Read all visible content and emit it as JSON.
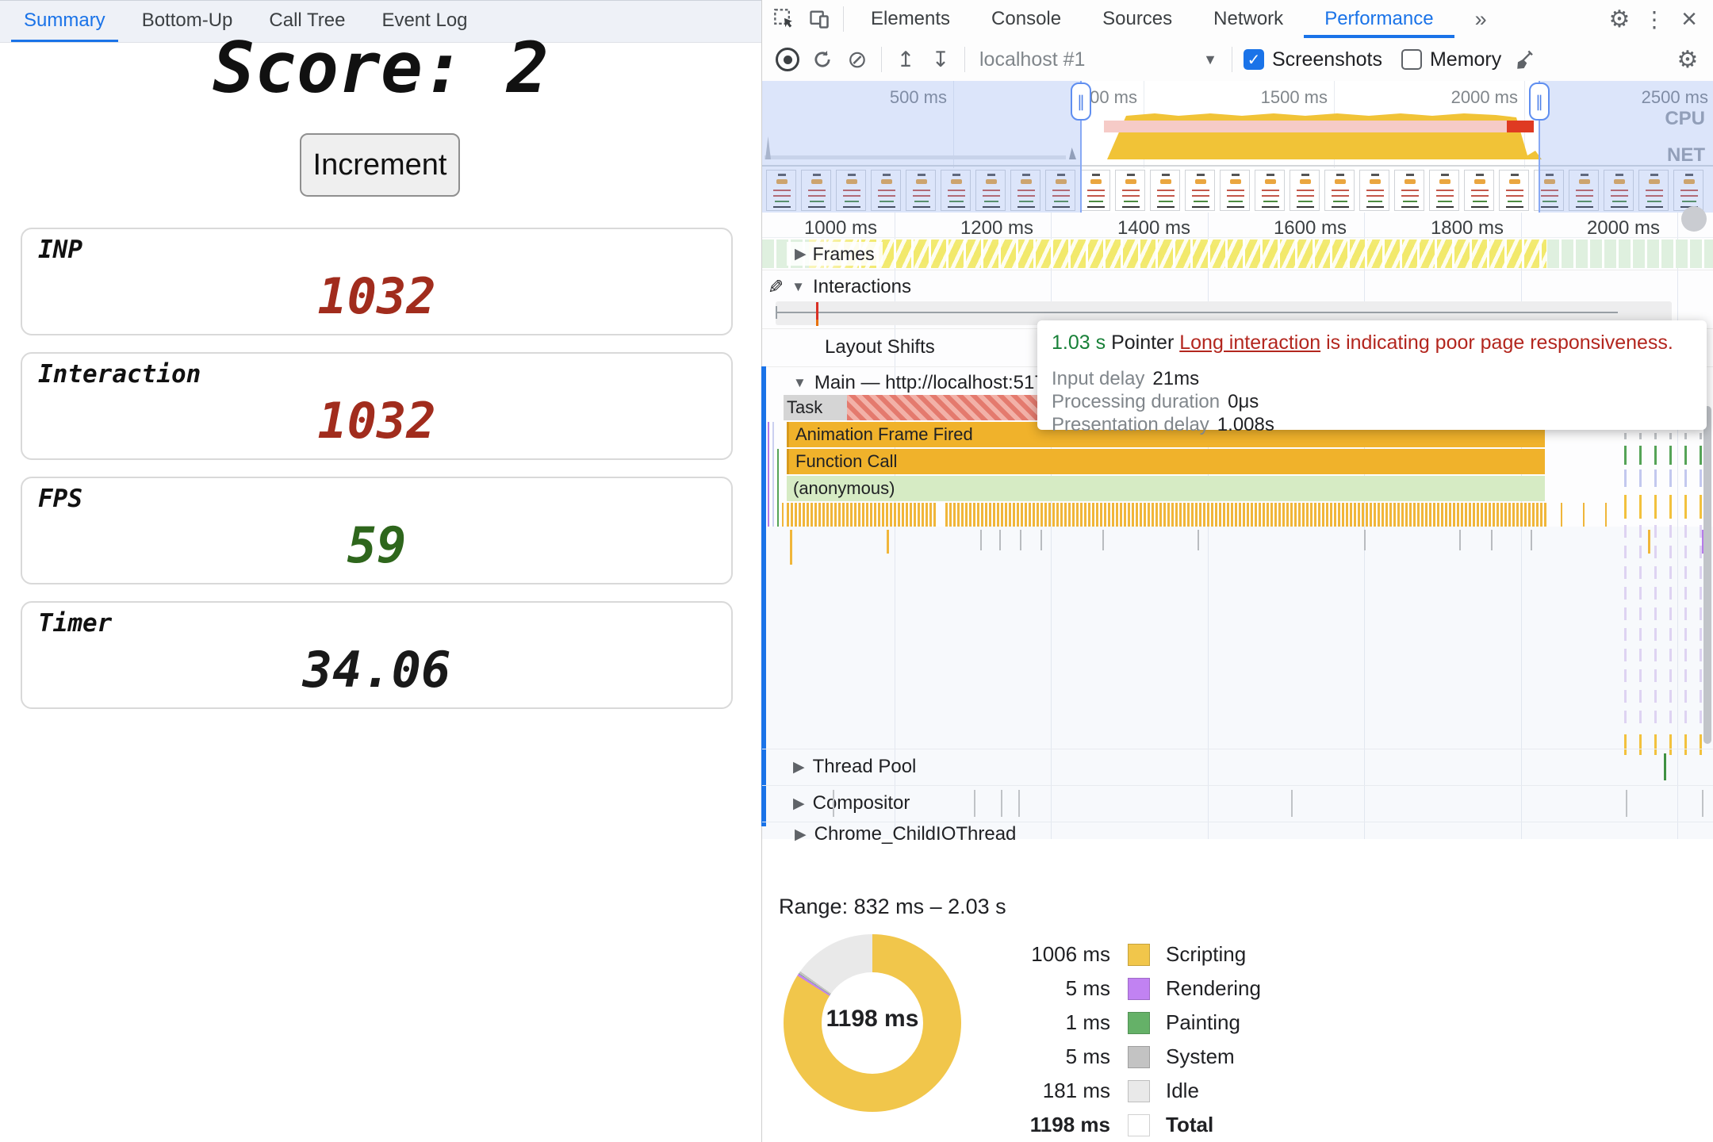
{
  "page": {
    "score_label": "Score: 2",
    "increment_button": "Increment",
    "metrics": [
      {
        "label": "INP",
        "value": "1032",
        "color": "#a12c1d"
      },
      {
        "label": "Interaction",
        "value": "1032",
        "color": "#a12c1d"
      },
      {
        "label": "FPS",
        "value": "59",
        "color": "#2e661c"
      },
      {
        "label": "Timer",
        "value": "34.06",
        "color": "#191919"
      }
    ]
  },
  "devtools": {
    "tabs": [
      "Elements",
      "Console",
      "Sources",
      "Network",
      "Performance"
    ],
    "active_tab": "Performance",
    "more_tabs_glyph": "»",
    "icons": [
      "inspect-icon",
      "device-toolbar-icon",
      "record-icon",
      "reload-icon",
      "clear-icon",
      "load-profile-icon",
      "save-profile-icon",
      "collect-garbage-icon",
      "settings-icon",
      "menu-icon",
      "close-icon",
      "edit-interactions-icon"
    ],
    "toolbar": {
      "profile_select": "localhost #1",
      "screenshots_label": "Screenshots",
      "screenshots_checked": true,
      "memory_label": "Memory",
      "memory_checked": false
    },
    "overview": {
      "ruler_labels": [
        "500 ms",
        "1000 ms",
        "1500 ms",
        "2000 ms",
        "2500 ms"
      ],
      "cpu_label": "CPU",
      "net_label": "NET"
    },
    "flame": {
      "ruler_labels": [
        "1000 ms",
        "1200 ms",
        "1400 ms",
        "1600 ms",
        "1800 ms",
        "2000 ms"
      ],
      "tracks": {
        "frames": "Frames",
        "interactions": "Interactions",
        "layout_shifts": "Layout Shifts",
        "main": "Main — http://localhost:517",
        "thread_pool": "Thread Pool",
        "compositor": "Compositor",
        "chrome_child_io": "Chrome_ChildIOThread"
      },
      "bars": {
        "task": "Task",
        "animation_frame": "Animation Frame Fired",
        "function_call": "Function Call",
        "anonymous": "(anonymous)"
      }
    },
    "tooltip": {
      "duration": "1.03 s",
      "type": "Pointer",
      "link": "Long interaction",
      "message": "is indicating poor page responsiveness.",
      "rows": [
        {
          "label": "Input delay",
          "value": "21ms"
        },
        {
          "label": "Processing duration",
          "value": "0μs"
        },
        {
          "label": "Presentation delay",
          "value": "1.008s"
        }
      ]
    },
    "drawer": {
      "tabs": [
        "Summary",
        "Bottom-Up",
        "Call Tree",
        "Event Log"
      ],
      "active_tab": "Summary",
      "range": "Range: 832 ms – 2.03 s"
    },
    "summary": {
      "total": "1198 ms",
      "legend": [
        {
          "value": "1006 ms",
          "label": "Scripting",
          "color": "#f1c64b",
          "ms": 1006,
          "bold": false
        },
        {
          "value": "5 ms",
          "label": "Rendering",
          "color": "#c182f2",
          "ms": 5,
          "bold": false
        },
        {
          "value": "1 ms",
          "label": "Painting",
          "color": "#65b168",
          "ms": 1,
          "bold": false
        },
        {
          "value": "5 ms",
          "label": "System",
          "color": "#c3c3c3",
          "ms": 5,
          "bold": false
        },
        {
          "value": "181 ms",
          "label": "Idle",
          "color": "#e9e9e9",
          "ms": 181,
          "bold": false
        },
        {
          "value": "1198 ms",
          "label": "Total",
          "color": "#ffffff",
          "ms": null,
          "bold": true
        }
      ]
    },
    "colors": {
      "accent": "#1a73e8",
      "flame_amber": "#f0b22b",
      "dense_tick": "#f0b63a",
      "anonymous_green": "#d6ebc4",
      "task_grey": "#d5d5d5",
      "stripe_red_a": "#e47a6e",
      "stripe_red_b": "#f2b1a8",
      "red_marker": "#d93025",
      "green_text": "#188038",
      "link_red": "#b3261e",
      "cpu_yellow": "#f1c337",
      "overview_pink": "#f6cbc7",
      "overview_red": "#df3a22"
    }
  }
}
